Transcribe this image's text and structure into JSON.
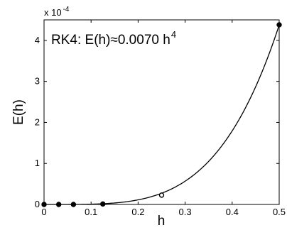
{
  "chart_data": {
    "type": "scatter",
    "xlabel": "h",
    "ylabel": "E(h)",
    "xlim": [
      0,
      0.5
    ],
    "ylim": [
      0,
      0.00045
    ],
    "xticks": [
      "0",
      "0.1",
      "0.2",
      "0.3",
      "0.4",
      "0.5"
    ],
    "yticks": [
      "0",
      "1",
      "2",
      "3",
      "4"
    ],
    "y_multiplier": {
      "base": "x 10",
      "exponent": "-4"
    },
    "annotation": {
      "text": "RK4: E(h)≈0.0070 h",
      "exponent": "4"
    },
    "fit": {
      "coefficient": 0.007,
      "power": 4
    },
    "points": {
      "x": [
        0.0,
        0.03125,
        0.0625,
        0.125,
        0.25,
        0.5
      ],
      "y": [
        0.0,
        0.0,
        0.0,
        1.1e-06,
        2.27e-05,
        0.000438
      ]
    },
    "grid": false,
    "box": true
  }
}
